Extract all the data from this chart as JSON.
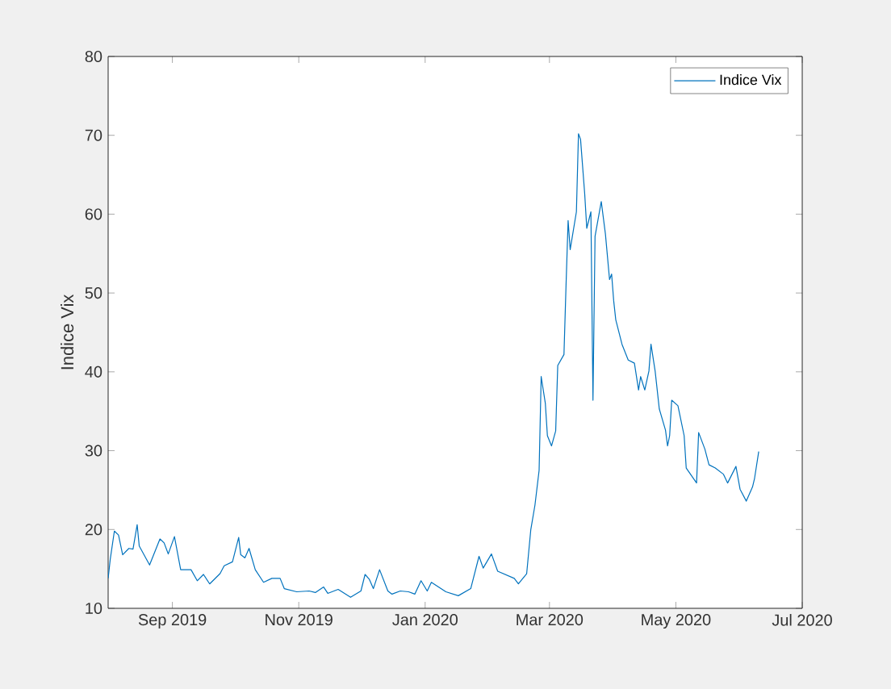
{
  "chart_data": {
    "type": "line",
    "ylabel": "Indice Vix",
    "x": [
      "2019-08-01",
      "2019-08-02",
      "2019-08-04",
      "2019-08-06",
      "2019-08-08",
      "2019-08-11",
      "2019-08-13",
      "2019-08-15",
      "2019-08-16",
      "2019-08-21",
      "2019-08-26",
      "2019-08-28",
      "2019-08-30",
      "2019-09-02",
      "2019-09-05",
      "2019-09-10",
      "2019-09-13",
      "2019-09-16",
      "2019-09-19",
      "2019-09-24",
      "2019-09-26",
      "2019-09-30",
      "2019-10-03",
      "2019-10-04",
      "2019-10-06",
      "2019-10-08",
      "2019-10-11",
      "2019-10-15",
      "2019-10-19",
      "2019-10-23",
      "2019-10-25",
      "2019-10-31",
      "2019-11-06",
      "2019-11-09",
      "2019-11-13",
      "2019-11-15",
      "2019-11-20",
      "2019-11-26",
      "2019-12-01",
      "2019-12-03",
      "2019-12-05",
      "2019-12-07",
      "2019-12-10",
      "2019-12-14",
      "2019-12-16",
      "2019-12-20",
      "2019-12-24",
      "2019-12-27",
      "2019-12-30",
      "2020-01-02",
      "2020-01-04",
      "2020-01-11",
      "2020-01-17",
      "2020-01-23",
      "2020-01-27",
      "2020-01-29",
      "2020-02-02",
      "2020-02-05",
      "2020-02-13",
      "2020-02-15",
      "2020-02-19",
      "2020-02-21",
      "2020-02-23",
      "2020-02-25",
      "2020-02-26",
      "2020-02-28",
      "2020-02-29",
      "2020-03-02",
      "2020-03-04",
      "2020-03-05",
      "2020-03-08",
      "2020-03-09",
      "2020-03-10",
      "2020-03-11",
      "2020-03-14",
      "2020-03-15",
      "2020-03-16",
      "2020-03-18",
      "2020-03-19",
      "2020-03-21",
      "2020-03-22",
      "2020-03-23",
      "2020-03-26",
      "2020-03-28",
      "2020-03-30",
      "2020-03-31",
      "2020-04-01",
      "2020-04-02",
      "2020-04-05",
      "2020-04-08",
      "2020-04-11",
      "2020-04-13",
      "2020-04-14",
      "2020-04-16",
      "2020-04-18",
      "2020-04-19",
      "2020-04-21",
      "2020-04-23",
      "2020-04-26",
      "2020-04-27",
      "2020-04-28",
      "2020-04-29",
      "2020-05-02",
      "2020-05-05",
      "2020-05-06",
      "2020-05-11",
      "2020-05-12",
      "2020-05-15",
      "2020-05-17",
      "2020-05-20",
      "2020-05-24",
      "2020-05-26",
      "2020-05-30",
      "2020-06-01",
      "2020-06-04",
      "2020-06-07",
      "2020-06-08",
      "2020-06-10"
    ],
    "series": [
      {
        "name": "Indice Vix",
        "color": "#0072bd",
        "values": [
          13.8,
          16.2,
          19.8,
          19.3,
          16.8,
          17.6,
          17.5,
          20.6,
          17.9,
          15.5,
          18.8,
          18.3,
          16.9,
          19.1,
          14.9,
          14.9,
          13.5,
          14.3,
          13.1,
          14.4,
          15.4,
          15.9,
          19.0,
          16.8,
          16.4,
          17.6,
          14.9,
          13.3,
          13.8,
          13.8,
          12.5,
          12.1,
          12.2,
          12.0,
          12.7,
          11.9,
          12.4,
          11.4,
          12.2,
          14.3,
          13.7,
          12.5,
          14.9,
          12.2,
          11.8,
          12.2,
          12.1,
          11.8,
          13.5,
          12.2,
          13.3,
          12.1,
          11.6,
          12.5,
          16.6,
          15.1,
          16.9,
          14.7,
          13.8,
          13.1,
          14.4,
          20.0,
          23.1,
          27.5,
          39.4,
          36.0,
          31.9,
          30.6,
          32.5,
          40.8,
          42.2,
          51.0,
          59.2,
          55.5,
          60.3,
          70.2,
          69.5,
          62.6,
          58.2,
          60.3,
          36.4,
          57.2,
          61.6,
          57.5,
          51.7,
          52.4,
          49.0,
          46.6,
          43.5,
          41.5,
          41.1,
          37.7,
          39.4,
          37.7,
          40.1,
          43.5,
          40.1,
          35.3,
          32.6,
          30.6,
          31.9,
          36.4,
          35.7,
          31.9,
          27.8,
          25.9,
          32.3,
          30.2,
          28.2,
          27.8,
          27.0,
          25.9,
          28.0,
          25.1,
          23.6,
          25.4,
          26.5,
          29.9
        ]
      }
    ],
    "xlim": [
      "2019-08-01",
      "2020-07-01"
    ],
    "xticks": [
      {
        "value": "2019-09-01",
        "label": "Sep 2019"
      },
      {
        "value": "2019-11-01",
        "label": "Nov 2019"
      },
      {
        "value": "2020-01-01",
        "label": "Jan 2020"
      },
      {
        "value": "2020-03-01",
        "label": "Mar 2020"
      },
      {
        "value": "2020-05-01",
        "label": "May 2020"
      },
      {
        "value": "2020-07-01",
        "label": "Jul 2020"
      }
    ],
    "ylim": [
      10,
      80
    ],
    "yticks": [
      10,
      20,
      30,
      40,
      50,
      60,
      70,
      80
    ],
    "grid": false,
    "legend": "top right",
    "marker": "none",
    "line_style": "solid"
  }
}
